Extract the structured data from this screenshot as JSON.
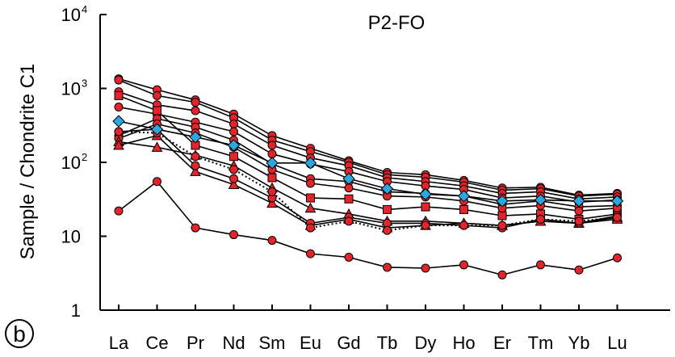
{
  "chart_data": {
    "type": "line",
    "panel_label": "b",
    "title": "P2-FO",
    "ylabel": "Sample / Chondrite C1",
    "xlabel": "",
    "y_scale": "log",
    "ylim": [
      1,
      10000
    ],
    "y_ticks": [
      {
        "value": 1,
        "base": "1",
        "exp": ""
      },
      {
        "value": 10,
        "base": "10",
        "exp": ""
      },
      {
        "value": 100,
        "base": "10",
        "exp": "2"
      },
      {
        "value": 1000,
        "base": "10",
        "exp": "3"
      },
      {
        "value": 10000,
        "base": "10",
        "exp": "4"
      }
    ],
    "categories": [
      "La",
      "Ce",
      "Pr",
      "Nd",
      "Sm",
      "Eu",
      "Gd",
      "Tb",
      "Dy",
      "Ho",
      "Er",
      "Tm",
      "Yb",
      "Lu"
    ],
    "grid": false,
    "colors": {
      "marker_fill": "#e3242b",
      "diamond_fill": "#29a8e0",
      "line": "#000000"
    },
    "series": [
      {
        "marker": "circle",
        "dashed": false,
        "values": [
          1350,
          960,
          700,
          450,
          230,
          155,
          105,
          73,
          68,
          57,
          45,
          46,
          36,
          38
        ]
      },
      {
        "marker": "circle",
        "dashed": false,
        "values": [
          1300,
          800,
          650,
          400,
          200,
          140,
          100,
          68,
          63,
          54,
          42,
          44,
          35,
          37
        ]
      },
      {
        "marker": "circle",
        "dashed": false,
        "values": [
          900,
          600,
          500,
          330,
          170,
          115,
          90,
          62,
          55,
          48,
          38,
          40,
          32,
          34
        ]
      },
      {
        "marker": "circle",
        "dashed": false,
        "values": [
          560,
          450,
          350,
          260,
          130,
          95,
          75,
          55,
          48,
          43,
          33,
          35,
          29,
          31
        ]
      },
      {
        "marker": "square",
        "dashed": false,
        "values": [
          800,
          500,
          170,
          120,
          62,
          33,
          32,
          23,
          25,
          23,
          19,
          20,
          17,
          20
        ]
      },
      {
        "marker": "circle",
        "dashed": false,
        "values": [
          230,
          390,
          300,
          200,
          95,
          60,
          55,
          40,
          38,
          35,
          27,
          30,
          25,
          26
        ]
      },
      {
        "marker": "circle",
        "dashed": false,
        "values": [
          210,
          330,
          250,
          160,
          80,
          52,
          45,
          35,
          34,
          30,
          24,
          26,
          22,
          24
        ]
      },
      {
        "marker": "triangle",
        "dashed": false,
        "values": [
          190,
          160,
          125,
          90,
          45,
          24,
          20,
          16,
          16,
          15,
          14,
          16,
          15,
          18
        ]
      },
      {
        "marker": "triangle",
        "dashed": false,
        "values": [
          170,
          230,
          75,
          50,
          28,
          14,
          17,
          13,
          14,
          15,
          14,
          16,
          15,
          17
        ]
      },
      {
        "marker": "circle",
        "dashed": false,
        "values": [
          260,
          280,
          90,
          60,
          33,
          15,
          18,
          15,
          15,
          14,
          13,
          17,
          15,
          19
        ]
      },
      {
        "marker": "circle",
        "dashed": true,
        "values": [
          260,
          250,
          120,
          80,
          40,
          13,
          16,
          12,
          14,
          14,
          14,
          17,
          16,
          18
        ]
      },
      {
        "marker": "circle",
        "dashed": false,
        "values": [
          22,
          55,
          13,
          10.5,
          8.8,
          5.8,
          5.2,
          3.8,
          3.7,
          4.1,
          3.0,
          4.1,
          3.5,
          5.1
        ]
      },
      {
        "marker": "diamond",
        "dashed": false,
        "values": [
          360,
          280,
          220,
          170,
          98,
          98,
          60,
          44,
          37,
          35,
          30,
          31,
          30,
          30
        ]
      }
    ]
  }
}
